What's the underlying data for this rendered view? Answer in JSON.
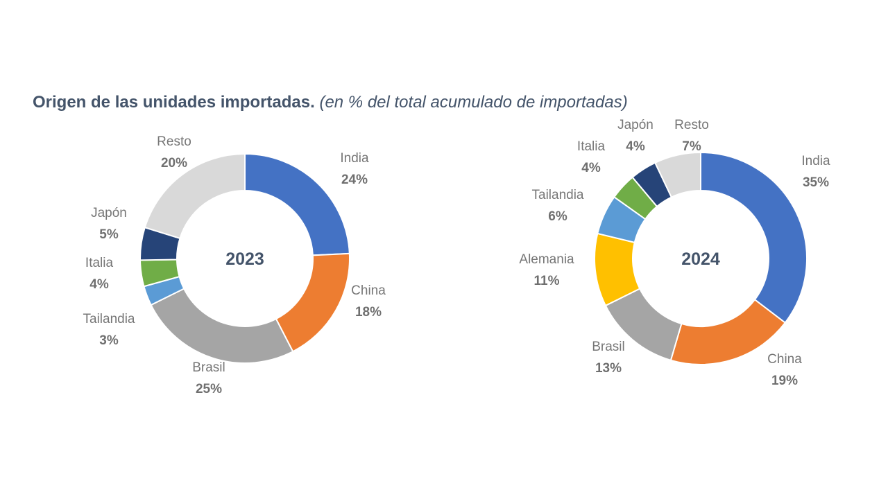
{
  "title": {
    "main": "Origen de las unidades importadas.",
    "subtitle": "(en % del total acumulado de importadas)"
  },
  "colors": {
    "India": "#4472c4",
    "China": "#ed7d31",
    "Brasil": "#a5a5a5",
    "Alemania": "#ffc000",
    "Tailandia": "#5b9bd5",
    "Italia": "#70ad47",
    "Japón": "#264478",
    "Resto": "#d9d9d9"
  },
  "chart_data": [
    {
      "type": "pie",
      "variant": "donut",
      "title": "2023",
      "center_label": "2023",
      "slices": [
        {
          "label": "India",
          "value": 24,
          "display": "24%"
        },
        {
          "label": "China",
          "value": 18,
          "display": "18%"
        },
        {
          "label": "Brasil",
          "value": 25,
          "display": "25%"
        },
        {
          "label": "Tailandia",
          "value": 3,
          "display": "3%"
        },
        {
          "label": "Italia",
          "value": 4,
          "display": "4%"
        },
        {
          "label": "Japón",
          "value": 5,
          "display": "5%"
        },
        {
          "label": "Resto",
          "value": 20,
          "display": "20%"
        }
      ]
    },
    {
      "type": "pie",
      "variant": "donut",
      "title": "2024",
      "center_label": "2024",
      "slices": [
        {
          "label": "India",
          "value": 35,
          "display": "35%"
        },
        {
          "label": "China",
          "value": 19,
          "display": "19%"
        },
        {
          "label": "Brasil",
          "value": 13,
          "display": "13%"
        },
        {
          "label": "Alemania",
          "value": 11,
          "display": "11%"
        },
        {
          "label": "Tailandia",
          "value": 6,
          "display": "6%"
        },
        {
          "label": "Italia",
          "value": 4,
          "display": "4%"
        },
        {
          "label": "Japón",
          "value": 4,
          "display": "4%"
        },
        {
          "label": "Resto",
          "value": 7,
          "display": "7%"
        }
      ]
    }
  ]
}
